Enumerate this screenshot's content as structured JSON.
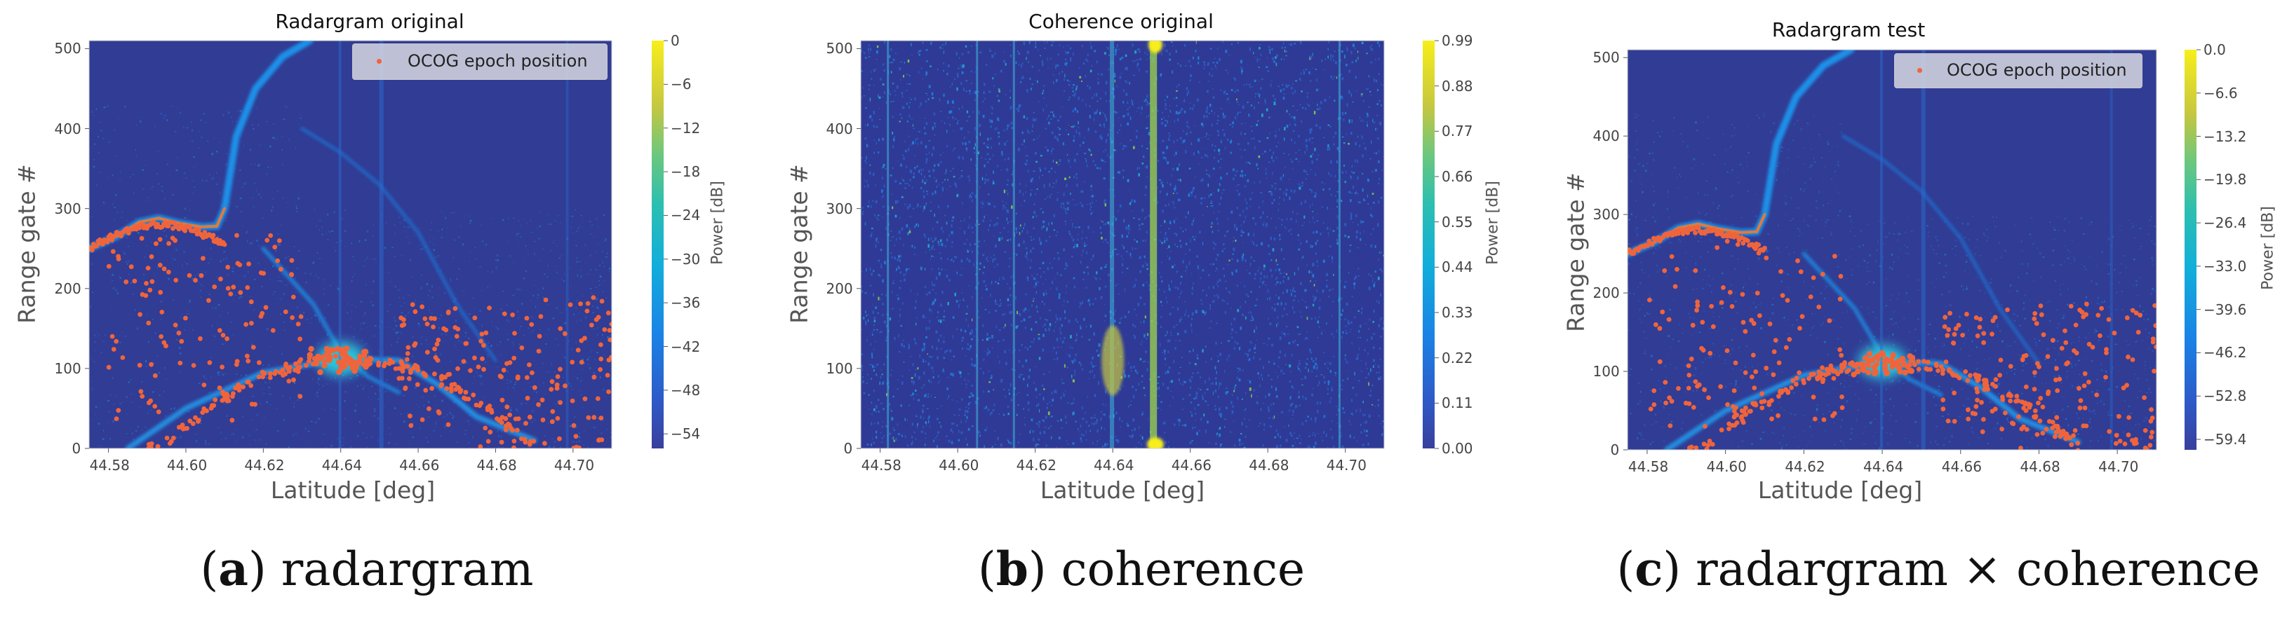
{
  "charts": [
    {
      "chart_data": {
        "type": "heatmap",
        "title": "Radargram original",
        "xlabel": "Latitude [deg]",
        "ylabel": "Range gate #",
        "xlim": [
          44.575,
          44.71
        ],
        "ylim": [
          0,
          510
        ],
        "x_ticks": [
          "44.58",
          "44.60",
          "44.62",
          "44.64",
          "44.66",
          "44.68",
          "44.70"
        ],
        "x_tick_values": [
          44.58,
          44.6,
          44.62,
          44.64,
          44.66,
          44.68,
          44.7
        ],
        "y_ticks": [
          "0",
          "100",
          "200",
          "300",
          "400",
          "500"
        ],
        "y_tick_values": [
          0,
          100,
          200,
          300,
          400,
          500
        ],
        "colorbar": {
          "label": "Power [dB]",
          "min": -56,
          "max": 0,
          "ticks": [
            "0",
            "−6",
            "−12",
            "−18",
            "−24",
            "−30",
            "−36",
            "−42",
            "−48",
            "−54"
          ],
          "tick_values": [
            0,
            -6,
            -12,
            -18,
            -24,
            -30,
            -36,
            -42,
            -48,
            -54
          ]
        },
        "legend": {
          "label": "OCOG epoch position",
          "placement": "top-right"
        },
        "ocog_points": true
      },
      "caption": {
        "letter": "a",
        "text": "radargram"
      }
    },
    {
      "chart_data": {
        "type": "heatmap",
        "title": "Coherence original",
        "xlabel": "Latitude [deg]",
        "ylabel": "Range gate #",
        "xlim": [
          44.575,
          44.71
        ],
        "ylim": [
          0,
          510
        ],
        "x_ticks": [
          "44.58",
          "44.60",
          "44.62",
          "44.64",
          "44.66",
          "44.68",
          "44.70"
        ],
        "x_tick_values": [
          44.58,
          44.6,
          44.62,
          44.64,
          44.66,
          44.68,
          44.7
        ],
        "y_ticks": [
          "0",
          "100",
          "200",
          "300",
          "400",
          "500"
        ],
        "y_tick_values": [
          0,
          100,
          200,
          300,
          400,
          500
        ],
        "colorbar": {
          "label": "Power [dB]",
          "min": 0,
          "max": 0.99,
          "ticks": [
            "0.99",
            "0.88",
            "0.77",
            "0.66",
            "0.55",
            "0.44",
            "0.33",
            "0.22",
            "0.11",
            "0.00"
          ],
          "tick_values": [
            0.99,
            0.88,
            0.77,
            0.66,
            0.55,
            0.44,
            0.33,
            0.22,
            0.11,
            0.0
          ]
        },
        "legend": null,
        "ocog_points": false
      },
      "caption": {
        "letter": "b",
        "text": "coherence"
      }
    },
    {
      "chart_data": {
        "type": "heatmap",
        "title": "Radargram test",
        "xlabel": "Latitude [deg]",
        "ylabel": "Range gate #",
        "xlim": [
          44.575,
          44.71
        ],
        "ylim": [
          0,
          510
        ],
        "x_ticks": [
          "44.58",
          "44.60",
          "44.62",
          "44.64",
          "44.66",
          "44.68",
          "44.70"
        ],
        "x_tick_values": [
          44.58,
          44.6,
          44.62,
          44.64,
          44.66,
          44.68,
          44.7
        ],
        "y_ticks": [
          "0",
          "100",
          "200",
          "300",
          "400",
          "500"
        ],
        "y_tick_values": [
          0,
          100,
          200,
          300,
          400,
          500
        ],
        "colorbar": {
          "label": "Power [dB]",
          "min": -61,
          "max": 0,
          "ticks": [
            "0.0",
            "−6.6",
            "−13.2",
            "−19.8",
            "−26.4",
            "−33.0",
            "−39.6",
            "−46.2",
            "−52.8",
            "−59.4"
          ],
          "tick_values": [
            0,
            -6.6,
            -13.2,
            -19.8,
            -26.4,
            -33.0,
            -39.6,
            -46.2,
            -52.8,
            -59.4
          ]
        },
        "legend": {
          "label": "OCOG epoch position",
          "placement": "top-right"
        },
        "ocog_points": true
      },
      "caption": {
        "letter": "c",
        "text": "radargram × coherence"
      }
    }
  ],
  "colors": {
    "background": "#2e3a8c",
    "points": "#f0643c",
    "trace": "#4fa3e0"
  }
}
